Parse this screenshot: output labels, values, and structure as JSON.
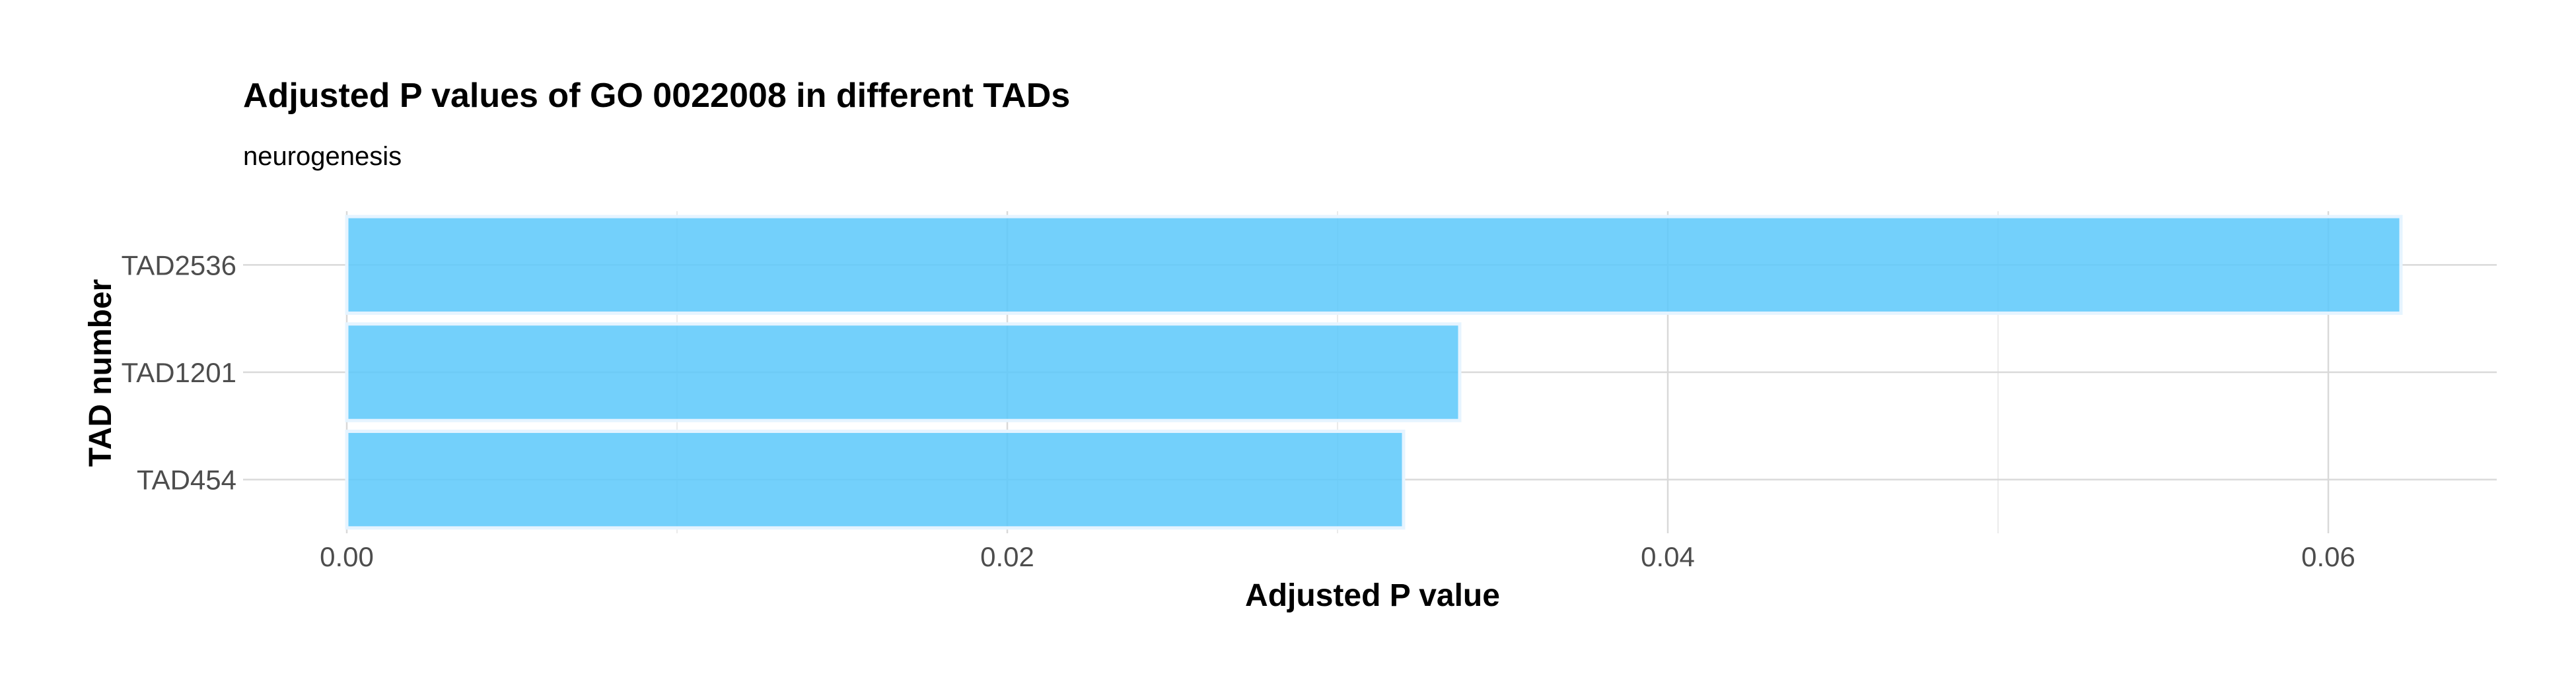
{
  "chart_data": {
    "type": "bar",
    "orientation": "horizontal",
    "title": "Adjusted P values of GO 0022008 in different TADs",
    "subtitle": "neurogenesis",
    "xlabel": "Adjusted P value",
    "ylabel": "TAD number",
    "categories": [
      "TAD2536",
      "TAD1201",
      "TAD454"
    ],
    "values": [
      0.0622,
      0.0337,
      0.032
    ],
    "xlim": [
      0,
      0.065
    ],
    "xticks": [
      0.0,
      0.02,
      0.04,
      0.06
    ],
    "xtick_labels": [
      "0.00",
      "0.02",
      "0.04",
      "0.06"
    ],
    "grid": true,
    "legend": "none",
    "bar_color": "#5ac8fa",
    "bar_opacity": 0.85
  }
}
